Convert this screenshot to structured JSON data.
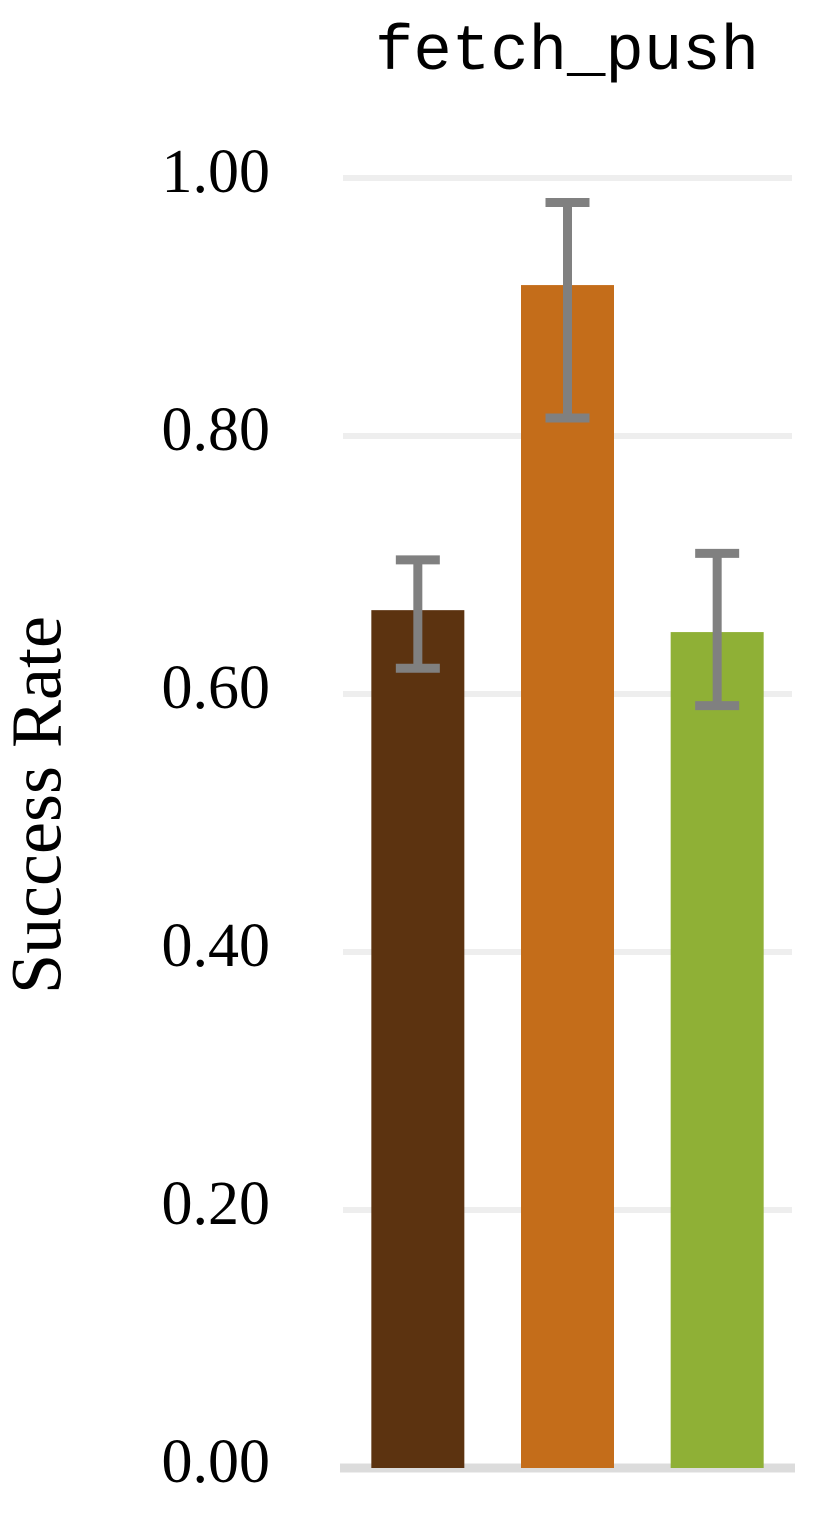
{
  "chart_data": {
    "type": "bar",
    "title": "fetch_push",
    "y_label": "Success Rate",
    "categories": [
      null,
      null,
      null
    ],
    "values": [
      0.665,
      0.917,
      0.648
    ],
    "error_low": [
      0.045,
      0.103,
      0.057
    ],
    "error_high": [
      0.039,
      0.064,
      0.061
    ],
    "colors": [
      "#5c3310",
      "#c46d1a",
      "#8fb036"
    ],
    "error_color": "#808080",
    "ylim": [
      0,
      1
    ],
    "yticks": [
      {
        "value": 0,
        "label": "0.00"
      },
      {
        "value": 0.2,
        "label": "0.20"
      },
      {
        "value": 0.4,
        "label": "0.40"
      },
      {
        "value": 0.6,
        "label": "0.60"
      },
      {
        "value": 0.8,
        "label": "0.80"
      },
      {
        "value": 1,
        "label": "1.00"
      }
    ],
    "grid": true
  }
}
